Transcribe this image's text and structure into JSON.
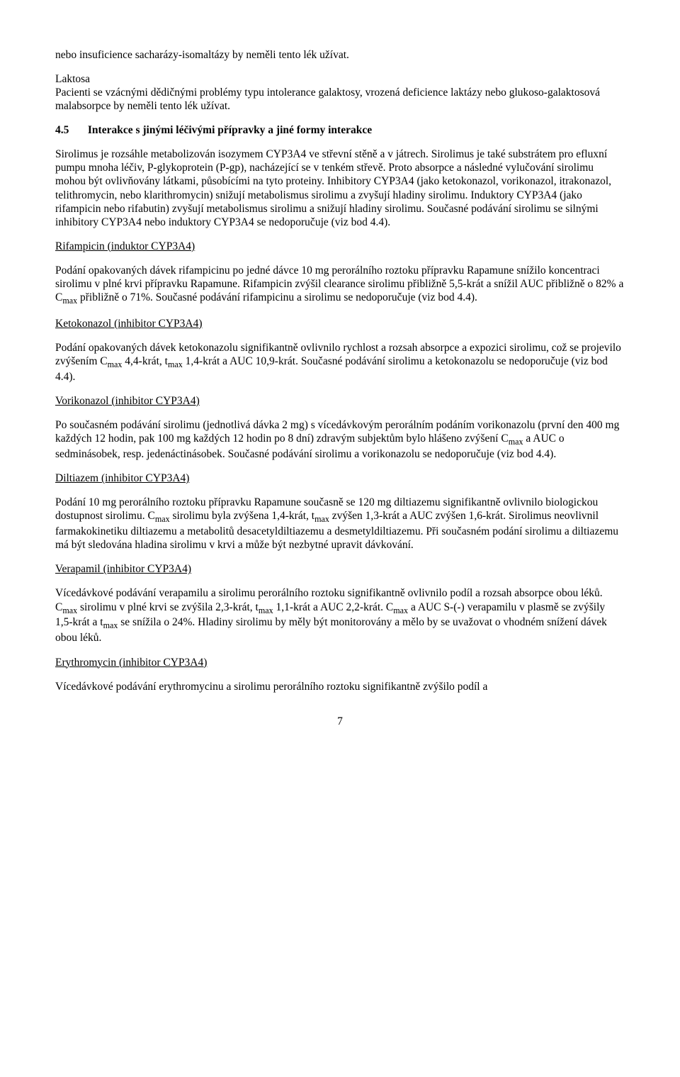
{
  "para_top": "nebo insuficience sacharázy-isomaltázy by neměli tento lék užívat.",
  "laktosa_heading": "Laktosa",
  "laktosa_body": "Pacienti se vzácnými dědičnými problémy typu intolerance galaktosy, vrozená deficience laktázy nebo glukoso-galaktosová malabsorpce by neměli tento lék užívat.",
  "section45_num": "4.5",
  "section45_title": "Interakce s jinými léčivými přípravky a jiné formy interakce",
  "section45_body": "Sirolimus je rozsáhle metabolizován isozymem CYP3A4 ve střevní stěně a v játrech. Sirolimus je také substrátem pro efluxní pumpu mnoha léčiv, P-glykoprotein (P-gp), nacházející se v tenkém střevě. Proto absorpce a následné vylučování sirolimu mohou být ovlivňovány látkami, působícími na tyto proteiny. Inhibitory CYP3A4 (jako ketokonazol, vorikonazol, itrakonazol, telithromycin, nebo klarithromycin) snižují metabolismus sirolimu a zvyšují hladiny sirolimu. Induktory CYP3A4 (jako rifampicin nebo rifabutin) zvyšují metabolismus sirolimu a snižují hladiny sirolimu. Současné podávání sirolimu se silnými inhibitory CYP3A4 nebo induktory CYP3A4 se nedoporučuje (viz bod 4.4).",
  "rifampicin_heading": "Rifampicin (induktor CYP3A4)",
  "rifampicin_body_1": "Podání opakovaných dávek rifampicinu po jedné dávce 10 mg perorálního roztoku přípravku Rapamune snížilo koncentraci sirolimu v plné krvi přípravku Rapamune. Rifampicin zvýšil clearance sirolimu přibližně 5,5-krát a snížil AUC přibližně o 82% a C",
  "rifampicin_body_2": " přibližně o 71%. Současné podávání rifampicinu a sirolimu se nedoporučuje (viz bod 4.4).",
  "ketokonazol_heading": "Ketokonazol (inhibitor CYP3A4)",
  "ketokonazol_body_1": "Podání opakovaných dávek ketokonazolu signifikantně ovlivnilo rychlost a rozsah absorpce a expozici sirolimu, což se projevilo zvýšením C",
  "ketokonazol_body_2": " 4,4-krát, t",
  "ketokonazol_body_3": " 1,4-krát a AUC 10,9-krát. Současné podávání sirolimu a ketokonazolu se nedoporučuje (viz bod 4.4).",
  "vorikonazol_heading": "Vorikonazol (inhibitor CYP3A4)",
  "vorikonazol_body_1": "Po současném podávání sirolimu (jednotlivá dávka 2 mg) s vícedávkovým perorálním podáním vorikonazolu (první den 400 mg každých 12 hodin, pak 100 mg každých 12 hodin po 8 dní) zdravým subjektům bylo hlášeno zvýšení C",
  "vorikonazol_body_2": "  a AUC o sedminásobek, resp. jedenáctinásobek. Současné podávání sirolimu a vorikonazolu se nedoporučuje (viz bod 4.4).",
  "diltiazem_heading": "Diltiazem (inhibitor CYP3A4)",
  "diltiazem_body_1": "Podání 10 mg perorálního roztoku přípravku Rapamune současně se 120 mg diltiazemu signifikantně ovlivnilo biologickou dostupnost sirolimu. C",
  "diltiazem_body_2": " sirolimu byla zvýšena 1,4-krát, t",
  "diltiazem_body_3": " zvýšen 1,3-krát a AUC zvýšen 1,6-krát. Sirolimus neovlivnil farmakokinetiku diltiazemu a metabolitů desacetyldiltiazemu a desmetyldiltiazemu. Při současném podání sirolimu a diltiazemu má být sledována hladina sirolimu v krvi a může být nezbytné upravit dávkování.",
  "verapamil_heading": "Verapamil (inhibitor CYP3A4)",
  "verapamil_body_1": "Vícedávkové podávání verapamilu a sirolimu perorálního roztoku signifikantně ovlivnilo podíl a rozsah absorpce obou léků. C",
  "verapamil_body_2": " sirolimu v plné krvi se zvýšila 2,3-krát, t",
  "verapamil_body_3": "  1,1-krát a AUC 2,2-krát. C",
  "verapamil_body_4": " a AUC S-(-) verapamilu v plasmě se zvýšily 1,5-krát a t",
  "verapamil_body_5": " se snížila o 24%. Hladiny sirolimu by měly být monitorovány a mělo by se uvažovat o vhodném snížení dávek obou léků.",
  "erythromycin_heading": "Erythromycin (inhibitor CYP3A4)",
  "erythromycin_body": "Vícedávkové podávání erythromycinu a sirolimu perorálního roztoku signifikantně zvýšilo podíl a",
  "sub_max": "max",
  "page_number": "7"
}
